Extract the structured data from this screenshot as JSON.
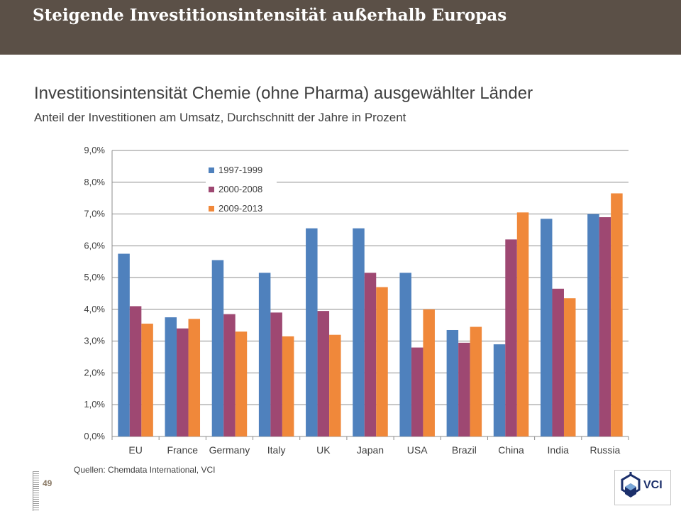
{
  "header": {
    "title": "Steigende Investitionsintensität außerhalb Europas"
  },
  "chart_data": {
    "type": "bar",
    "title": "Investitionsintensität Chemie (ohne Pharma) ausgewählter Länder",
    "subtitle": "Anteil der Investitionen am Umsatz, Durchschnitt der Jahre in Prozent",
    "categories": [
      "EU",
      "France",
      "Germany",
      "Italy",
      "UK",
      "Japan",
      "USA",
      "Brazil",
      "China",
      "India",
      "Russia"
    ],
    "series": [
      {
        "name": "1997-1999",
        "color": "#4f81bd",
        "values": [
          5.75,
          3.75,
          5.55,
          5.15,
          6.55,
          6.55,
          5.15,
          3.35,
          2.9,
          6.85,
          7.0
        ]
      },
      {
        "name": "2000-2008",
        "color": "#9e4872",
        "values": [
          4.1,
          3.4,
          3.85,
          3.9,
          3.95,
          5.15,
          2.8,
          2.95,
          6.2,
          4.65,
          6.9
        ]
      },
      {
        "name": "2009-2013",
        "color": "#f0883a",
        "values": [
          3.55,
          3.7,
          3.3,
          3.15,
          3.2,
          4.7,
          4.0,
          3.45,
          7.05,
          4.35,
          7.65
        ]
      }
    ],
    "y_ticks": [
      "0,0%",
      "1,0%",
      "2,0%",
      "3,0%",
      "4,0%",
      "5,0%",
      "6,0%",
      "7,0%",
      "8,0%",
      "9,0%"
    ],
    "ylim": [
      0,
      9
    ],
    "grid": true,
    "legend_position": "top-left"
  },
  "footer": {
    "source": "Quellen: Chemdata International, VCI",
    "page_number": "49",
    "logo_text": "VCI"
  }
}
